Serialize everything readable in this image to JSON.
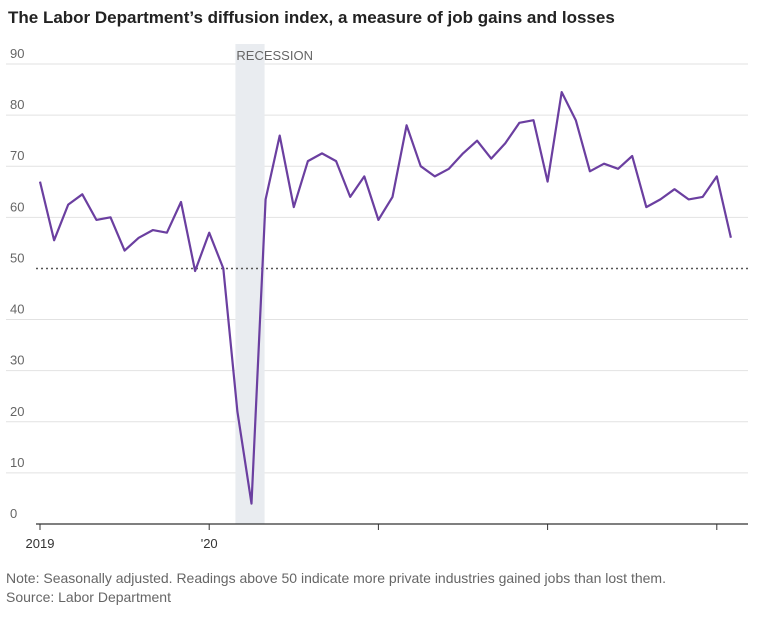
{
  "title": "The Labor Department’s diffusion index, a measure of job gains and losses",
  "note": "Note: Seasonally adjusted. Readings above 50 indicate more private industries gained jobs than lost them.",
  "source": "Source: Labor Department",
  "colors": {
    "line": "#6b3fa0",
    "recession": "#e9ecf0",
    "grid": "#e2e2e2",
    "axis": "#333333",
    "threshold": "#555555",
    "tick_text": "#666666"
  },
  "chart_data": {
    "type": "line",
    "title": "The Labor Department’s diffusion index, a measure of job gains and losses",
    "xlabel": "",
    "ylabel": "",
    "ylim": [
      0,
      90
    ],
    "yticks": [
      0,
      10,
      20,
      30,
      40,
      50,
      60,
      70,
      80,
      90
    ],
    "x_ticks": [
      "2019",
      "'20",
      "",
      "",
      "",
      ""
    ],
    "threshold": 50,
    "recession": {
      "label": "RECESSION",
      "start_month_index": 14,
      "end_month_index": 16
    },
    "series": [
      {
        "name": "Diffusion index",
        "values": [
          67,
          55.5,
          62.5,
          64.5,
          59.5,
          60,
          53.5,
          56,
          57.5,
          57,
          63,
          49.5,
          57,
          50,
          22,
          4,
          63.5,
          76,
          62,
          71,
          72.5,
          71,
          64,
          68,
          59.5,
          64,
          78,
          70,
          68,
          69.5,
          72.5,
          75,
          71.5,
          74.5,
          78.5,
          79,
          67,
          84.5,
          79,
          69,
          70.5,
          69.5,
          72,
          62,
          63.5,
          65.5,
          63.5,
          64,
          68,
          56
        ]
      }
    ]
  }
}
